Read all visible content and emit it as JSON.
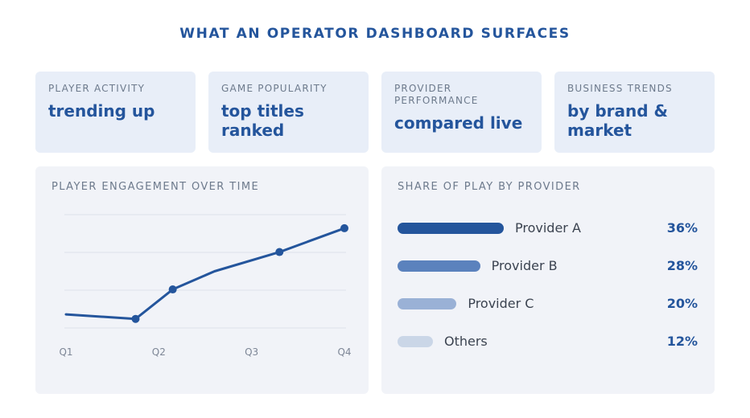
{
  "header": {
    "title": "WHAT AN OPERATOR DASHBOARD SURFACES"
  },
  "kpis": [
    {
      "label": "PLAYER ACTIVITY",
      "value": "trending up"
    },
    {
      "label": "GAME POPULARITY",
      "value": "top titles ranked"
    },
    {
      "label": "PROVIDER PERFORMANCE",
      "value": "compared live"
    },
    {
      "label": "BUSINESS TRENDS",
      "value": "by brand & market"
    }
  ],
  "engagement": {
    "title": "PLAYER ENGAGEMENT OVER TIME",
    "x_ticks": [
      "Q1",
      "Q2",
      "Q3",
      "Q4"
    ]
  },
  "share": {
    "title": "SHARE OF PLAY BY PROVIDER",
    "rows": [
      {
        "label": "Provider A",
        "value": "36%",
        "pct": 36,
        "color": "#24559c"
      },
      {
        "label": "Provider B",
        "value": "28%",
        "pct": 28,
        "color": "#5b82bd"
      },
      {
        "label": "Provider C",
        "value": "20%",
        "pct": 20,
        "color": "#9ab1d6"
      },
      {
        "label": "Others",
        "value": "12%",
        "pct": 12,
        "color": "#cad6e7"
      }
    ]
  },
  "chart_data": {
    "type": "line",
    "x": [
      "Q1",
      "",
      "Q2",
      "",
      "Q3",
      "Q4"
    ],
    "x_positions": [
      1.0,
      1.75,
      2.15,
      2.6,
      3.3,
      4.0
    ],
    "values": [
      12,
      8,
      34,
      50,
      67,
      88
    ],
    "markers": [
      false,
      true,
      true,
      false,
      true,
      true
    ],
    "ylim": [
      0,
      100
    ],
    "grid": true,
    "color": "#24559c"
  }
}
